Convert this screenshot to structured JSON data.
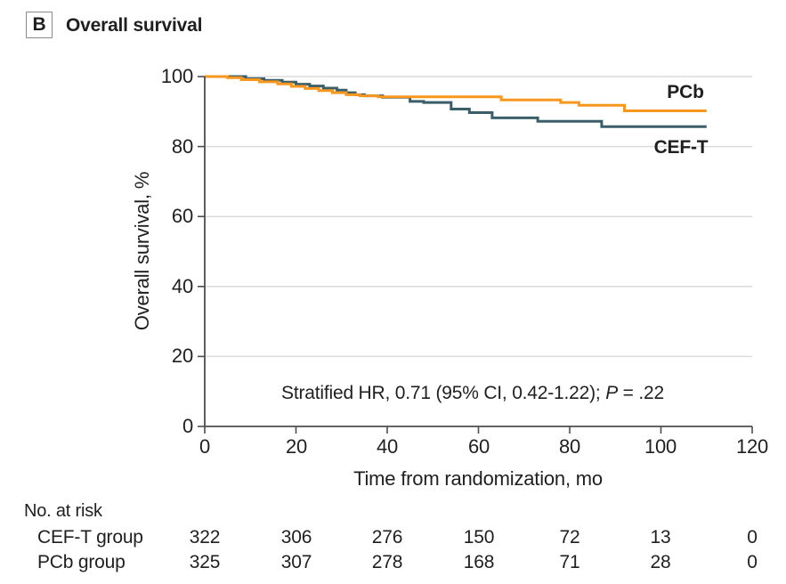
{
  "header": {
    "panel_label": "B",
    "title": "Overall survival"
  },
  "chart_data": {
    "type": "line",
    "subtype": "kaplan-meier-step",
    "title": "Overall survival",
    "xlabel": "Time from randomization, mo",
    "ylabel": "Overall survival, %",
    "xlim": [
      0,
      120
    ],
    "ylim": [
      0,
      100
    ],
    "x_ticks": [
      0,
      20,
      40,
      60,
      80,
      100,
      120
    ],
    "y_ticks": [
      100,
      80,
      60,
      40,
      20,
      0
    ],
    "gridlines": [
      20,
      40,
      60,
      80,
      100
    ],
    "grid_on": true,
    "legend_position": "end-of-line labels",
    "annotation": {
      "prefix": "Stratified HR, 0.71 (95% CI, 0.42-1.22); ",
      "p_label": "P",
      "p_value": " = .22"
    },
    "colors": {
      "grid": "#dbdbdb",
      "axis": "#4d4d4d",
      "text": "#1f1f1f"
    },
    "series": [
      {
        "name": "CEF-T",
        "color": "#3a5f6a",
        "points": [
          [
            0,
            100
          ],
          [
            9,
            100
          ],
          [
            9,
            99.4
          ],
          [
            13,
            99.4
          ],
          [
            13,
            98.9
          ],
          [
            17,
            98.9
          ],
          [
            17,
            98.4
          ],
          [
            20,
            98.4
          ],
          [
            20,
            97.8
          ],
          [
            23,
            97.8
          ],
          [
            23,
            97.3
          ],
          [
            26,
            97.3
          ],
          [
            26,
            96.7
          ],
          [
            29,
            96.7
          ],
          [
            29,
            96.1
          ],
          [
            31,
            96.1
          ],
          [
            31,
            95.4
          ],
          [
            33,
            95.4
          ],
          [
            33,
            94.8
          ],
          [
            35,
            94.8
          ],
          [
            35,
            94.5
          ],
          [
            39,
            94.5
          ],
          [
            39,
            94.1
          ],
          [
            45,
            94.1
          ],
          [
            45,
            92.9
          ],
          [
            48,
            92.9
          ],
          [
            48,
            92.6
          ],
          [
            54,
            92.6
          ],
          [
            54,
            90.7
          ],
          [
            58,
            90.7
          ],
          [
            58,
            89.7
          ],
          [
            63,
            89.7
          ],
          [
            63,
            88.2
          ],
          [
            73,
            88.2
          ],
          [
            73,
            87.2
          ],
          [
            87,
            87.2
          ],
          [
            87,
            85.7
          ],
          [
            110,
            85.7
          ]
        ]
      },
      {
        "name": "PCb",
        "color": "#f8961d",
        "points": [
          [
            0,
            100
          ],
          [
            5,
            100
          ],
          [
            5,
            99.7
          ],
          [
            8,
            99.7
          ],
          [
            8,
            99.1
          ],
          [
            12,
            99.1
          ],
          [
            12,
            98.5
          ],
          [
            16,
            98.5
          ],
          [
            16,
            97.9
          ],
          [
            19,
            97.9
          ],
          [
            19,
            97.2
          ],
          [
            22,
            97.2
          ],
          [
            22,
            96.6
          ],
          [
            25,
            96.6
          ],
          [
            25,
            96.0
          ],
          [
            28,
            96.0
          ],
          [
            28,
            95.4
          ],
          [
            31,
            95.4
          ],
          [
            31,
            94.8
          ],
          [
            34,
            94.8
          ],
          [
            34,
            94.5
          ],
          [
            38,
            94.5
          ],
          [
            38,
            94.2
          ],
          [
            65,
            94.2
          ],
          [
            65,
            93.3
          ],
          [
            78,
            93.3
          ],
          [
            78,
            92.6
          ],
          [
            82,
            92.6
          ],
          [
            82,
            91.8
          ],
          [
            92,
            91.8
          ],
          [
            92,
            90.2
          ],
          [
            110,
            90.2
          ]
        ]
      }
    ]
  },
  "at_risk": {
    "title": "No. at risk",
    "rows": [
      {
        "label": "CEF-T group",
        "values": [
          322,
          306,
          276,
          150,
          72,
          13,
          0
        ]
      },
      {
        "label": "PCb group",
        "values": [
          325,
          307,
          278,
          168,
          71,
          28,
          0
        ]
      }
    ]
  }
}
